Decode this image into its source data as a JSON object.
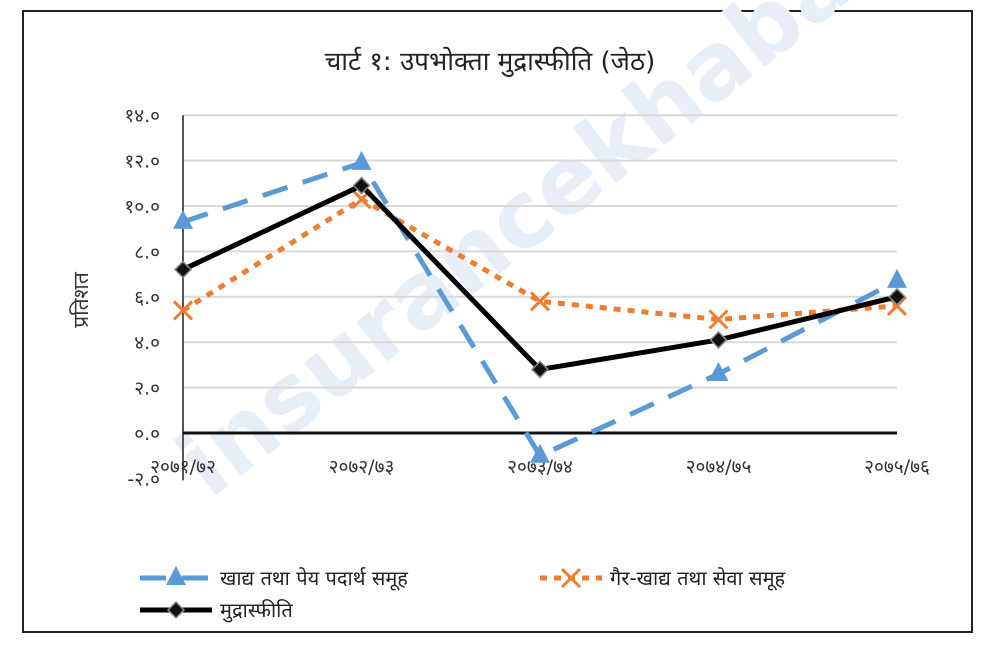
{
  "chart_data": {
    "type": "line",
    "title": "चार्ट १: उपभोक्ता मुद्रास्फीति (जेठ)",
    "xlabel": "",
    "ylabel": "प्रतिशत",
    "categories": [
      "२०७१/७२",
      "२०७२/७३",
      "२०७३/७४",
      "२०७४/७५",
      "२०७५/७६"
    ],
    "ylim": [
      -2,
      14
    ],
    "yticks": [
      -2,
      0,
      2,
      4,
      6,
      8,
      10,
      12,
      14
    ],
    "ytick_labels": [
      "-२.०",
      "०.०",
      "२.०",
      "४.०",
      "६.०",
      "८.०",
      "१०.०",
      "१२.०",
      "१४.०"
    ],
    "grid": true,
    "legend_position": "bottom",
    "series": [
      {
        "name": "खाद्य तथा पेय पदार्थ समूह",
        "values": [
          9.3,
          11.9,
          -1.0,
          2.6,
          6.7
        ],
        "color": "#5B9BD5",
        "style": "dashed",
        "marker": "triangle"
      },
      {
        "name": "गैर-खाद्य तथा सेवा समूह",
        "values": [
          5.4,
          10.3,
          5.8,
          5.0,
          5.6
        ],
        "color": "#ED7D31",
        "style": "dotted",
        "marker": "x"
      },
      {
        "name": "मुद्रास्फीति",
        "values": [
          7.2,
          10.9,
          2.8,
          4.1,
          6.0
        ],
        "color": "#000000",
        "style": "solid",
        "marker": "diamond"
      }
    ]
  },
  "watermark": "insurancekhabar"
}
